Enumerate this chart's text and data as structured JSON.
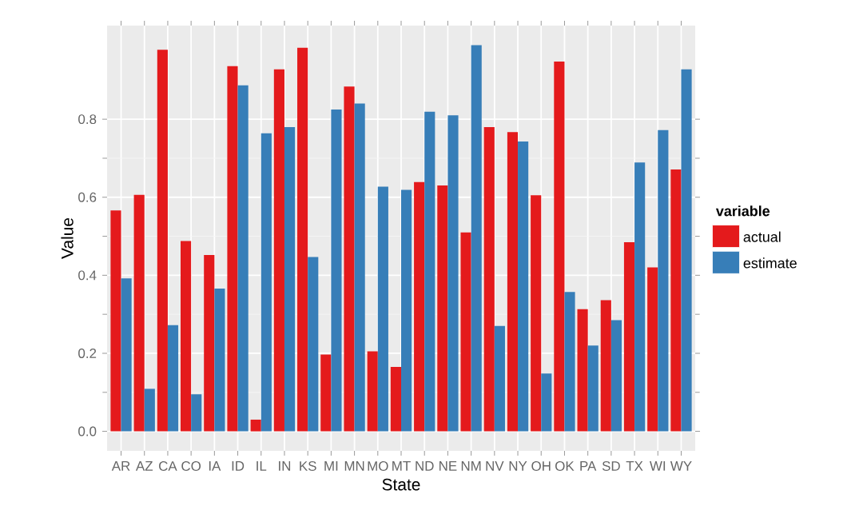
{
  "chart_data": {
    "type": "bar",
    "xlabel": "State",
    "ylabel": "Value",
    "legend_title": "variable",
    "categories": [
      "AR",
      "AZ",
      "CA",
      "CO",
      "IA",
      "ID",
      "IL",
      "IN",
      "KS",
      "MI",
      "MN",
      "MO",
      "MT",
      "ND",
      "NE",
      "NM",
      "NV",
      "NY",
      "OH",
      "OK",
      "PA",
      "SD",
      "TX",
      "WI",
      "WY"
    ],
    "series": [
      {
        "name": "actual",
        "color": "#e41a1c",
        "values": [
          0.566,
          0.606,
          0.978,
          0.488,
          0.452,
          0.936,
          0.03,
          0.928,
          0.983,
          0.197,
          0.884,
          0.205,
          0.165,
          0.639,
          0.63,
          0.51,
          0.78,
          0.767,
          0.605,
          0.948,
          0.313,
          0.336,
          0.485,
          0.42,
          0.671
        ]
      },
      {
        "name": "estimate",
        "color": "#377eb8",
        "values": [
          0.392,
          0.109,
          0.272,
          0.095,
          0.366,
          0.887,
          0.764,
          0.78,
          0.447,
          0.825,
          0.84,
          0.627,
          0.619,
          0.819,
          0.81,
          0.99,
          0.27,
          0.743,
          0.148,
          0.357,
          0.22,
          0.285,
          0.689,
          0.772,
          0.928
        ]
      }
    ],
    "ylim": [
      -0.05,
      1.04
    ],
    "yticks": [
      {
        "value": 0,
        "label": "0.0"
      },
      {
        "value": 0.2,
        "label": "0.2"
      },
      {
        "value": 0.4,
        "label": "0.4"
      },
      {
        "value": 0.6,
        "label": "0.6"
      },
      {
        "value": 0.8,
        "label": "0.8"
      }
    ],
    "grid": true,
    "legend": "right"
  }
}
